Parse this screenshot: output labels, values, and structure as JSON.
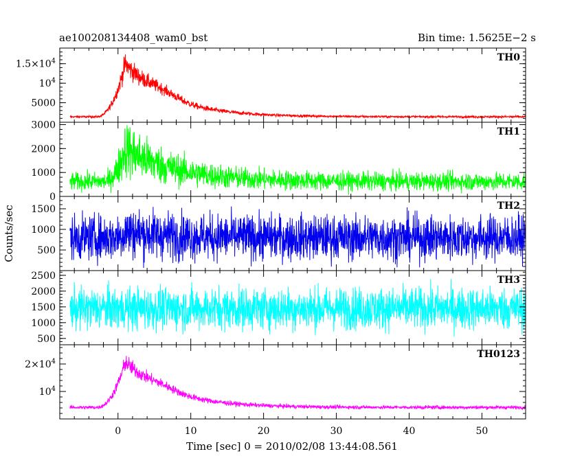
{
  "chart_data": {
    "type": "line",
    "title_left": "ae100208134408_wam0_bst",
    "title_right": "Bin time: 1.5625E−2 s",
    "ylabel": "Counts/sec",
    "xlabel": "Time [sec] 0 = 2010/02/08 13:44:08.561",
    "x_range": [
      -8,
      56
    ],
    "x_ticks": [
      0,
      10,
      20,
      30,
      40,
      50
    ],
    "x_tick_labels": [
      "0",
      "10",
      "20",
      "30",
      "40",
      "50"
    ],
    "grid": false,
    "panels": [
      {
        "name": "TH0",
        "color": "#ff0000",
        "ylim": [
          0,
          19000
        ],
        "yticks": [
          5000,
          10000,
          15000
        ],
        "ytick_labels": [
          {
            "base": "5000"
          },
          {
            "base": "10",
            "sup": "4"
          },
          {
            "base": "1.5×10",
            "sup": "4"
          }
        ],
        "profile": {
          "baseline": 1400,
          "peak": 13500,
          "rise_start": -3,
          "peak_t": 1,
          "decay": 6,
          "noise": 0.18,
          "bump": 3500
        }
      },
      {
        "name": "TH1",
        "color": "#00ff00",
        "ylim": [
          0,
          3100
        ],
        "yticks": [
          0,
          1000,
          2000,
          3000
        ],
        "ytick_labels": [
          {
            "base": "0"
          },
          {
            "base": "1000"
          },
          {
            "base": "2000"
          },
          {
            "base": "3000"
          }
        ],
        "profile": {
          "baseline": 620,
          "peak": 1400,
          "rise_start": -2,
          "peak_t": 1,
          "decay": 7,
          "noise": 0.55,
          "bump": 0
        }
      },
      {
        "name": "TH2",
        "color": "#0000ee",
        "ylim": [
          0,
          1800
        ],
        "yticks": [
          500,
          1000,
          1500
        ],
        "ytick_labels": [
          {
            "base": "500"
          },
          {
            "base": "1000"
          },
          {
            "base": "1500"
          }
        ],
        "profile": {
          "baseline": 800,
          "peak": 150,
          "rise_start": -1,
          "peak_t": 1,
          "decay": 6,
          "noise": 0.62,
          "bump": 0
        }
      },
      {
        "name": "TH3",
        "color": "#00ffff",
        "ylim": [
          300,
          2650
        ],
        "yticks": [
          500,
          1000,
          1500,
          2000,
          2500
        ],
        "ytick_labels": [
          {
            "base": "500"
          },
          {
            "base": "1000"
          },
          {
            "base": "1500"
          },
          {
            "base": "2000"
          },
          {
            "base": "2500"
          }
        ],
        "profile": {
          "baseline": 1450,
          "peak": 0,
          "rise_start": 0,
          "peak_t": 1,
          "decay": 6,
          "noise": 0.42,
          "bump": 0
        }
      },
      {
        "name": "TH0123",
        "color": "#ff00ff",
        "ylim": [
          0,
          27000
        ],
        "yticks": [
          10000,
          20000
        ],
        "ytick_labels": [
          {
            "base": "10",
            "sup": "4"
          },
          {
            "base": "2×10",
            "sup": "4"
          }
        ],
        "profile": {
          "baseline": 4200,
          "peak": 16500,
          "rise_start": -3,
          "peak_t": 1,
          "decay": 6,
          "noise": 0.14,
          "bump": 3500
        }
      }
    ]
  }
}
